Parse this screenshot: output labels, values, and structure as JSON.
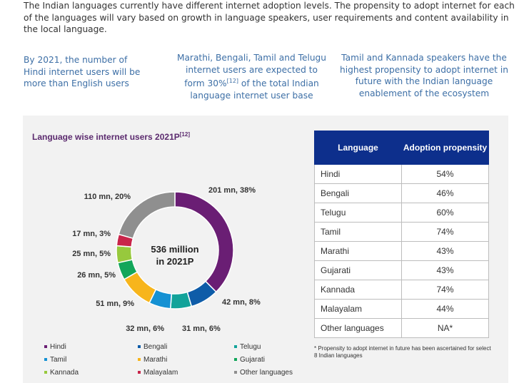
{
  "intro": "The Indian languages currently have different internet adoption levels. The propensity to adopt internet for each of the languages will vary based on growth in language speakers, user requirements and content availability in the local language.",
  "callouts": [
    "By 2021, the number of Hindi internet users will be more than English users",
    "Marathi, Bengali, Tamil and Telugu internet users are expected to form 30%",
    "of the total Indian language internet user base",
    "Tamil and Kannada speakers have the highest propensity to adopt internet in future with the Indian language enablement of the ecosystem"
  ],
  "callout_ref": "[12]",
  "chart_data": {
    "type": "pie",
    "title": "Language wise internet users 2021P",
    "title_ref": "[12]",
    "center_label": [
      "536 million",
      "in 2021P"
    ],
    "slices": [
      {
        "name": "Hindi",
        "value": 201,
        "percent": 38,
        "label": "201 mn, 38%",
        "color": "#6a1e74"
      },
      {
        "name": "Bengali",
        "value": 42,
        "percent": 8,
        "label": "42 mn, 8%",
        "color": "#0e5ca8"
      },
      {
        "name": "Telugu",
        "value": 31,
        "percent": 6,
        "label": "31 mn, 6%",
        "color": "#12a39a"
      },
      {
        "name": "Tamil",
        "value": 32,
        "percent": 6,
        "label": "32 mn, 6%",
        "color": "#1591d3"
      },
      {
        "name": "Marathi",
        "value": 51,
        "percent": 9,
        "label": "51 mn, 9%",
        "color": "#f7b51c"
      },
      {
        "name": "Gujarati",
        "value": 26,
        "percent": 5,
        "label": "26 mn, 5%",
        "color": "#12a65a"
      },
      {
        "name": "Kannada",
        "value": 25,
        "percent": 5,
        "label": "25 mn, 5%",
        "color": "#97c93d"
      },
      {
        "name": "Malayalam",
        "value": 17,
        "percent": 3,
        "label": "17 mn, 3%",
        "color": "#c8254a"
      },
      {
        "name": "Other languages",
        "value": 110,
        "percent": 20,
        "label": "110 mn, 20%",
        "color": "#8f8f8f"
      }
    ]
  },
  "table": {
    "headers": [
      "Language",
      "Adoption propensity"
    ],
    "rows": [
      [
        "Hindi",
        "54%"
      ],
      [
        "Bengali",
        "46%"
      ],
      [
        "Telugu",
        "60%"
      ],
      [
        "Tamil",
        "74%"
      ],
      [
        "Marathi",
        "43%"
      ],
      [
        "Gujarati",
        "43%"
      ],
      [
        "Kannada",
        "74%"
      ],
      [
        "Malayalam",
        "44%"
      ],
      [
        "Other languages",
        "NA*"
      ]
    ]
  },
  "footnote": "* Propensity to adopt internet in future has been ascertained for select 8 Indian languages"
}
